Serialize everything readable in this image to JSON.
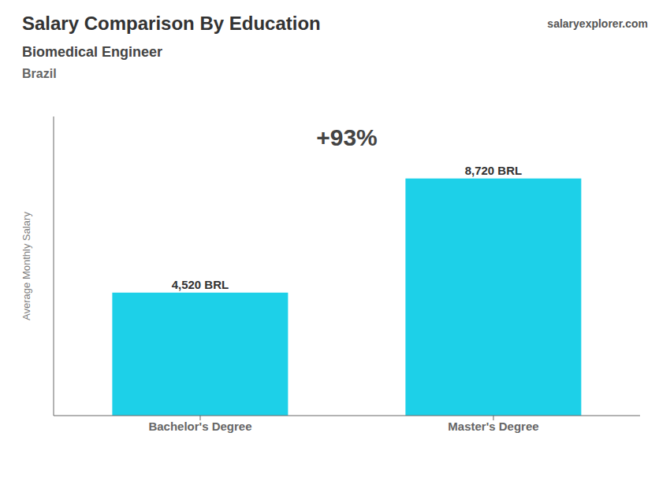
{
  "chart_data": {
    "type": "bar",
    "title": "Salary Comparison By Education",
    "subtitle": "Biomedical Engineer",
    "annotations": [
      "Brazil",
      "salary",
      "explorer.com",
      "+93%"
    ],
    "y_label": "Average Monthly Salary",
    "categories": [
      "Bachelor's Degree",
      "Master's Degree"
    ],
    "values": [
      4520,
      8720
    ],
    "value_labels": [
      "4,520 BRL",
      "8,720 BRL"
    ],
    "data_labels": true,
    "color": "#1DD0E8",
    "ylim": [
      0,
      11000
    ],
    "tick_labels": "x",
    "grid": false
  }
}
